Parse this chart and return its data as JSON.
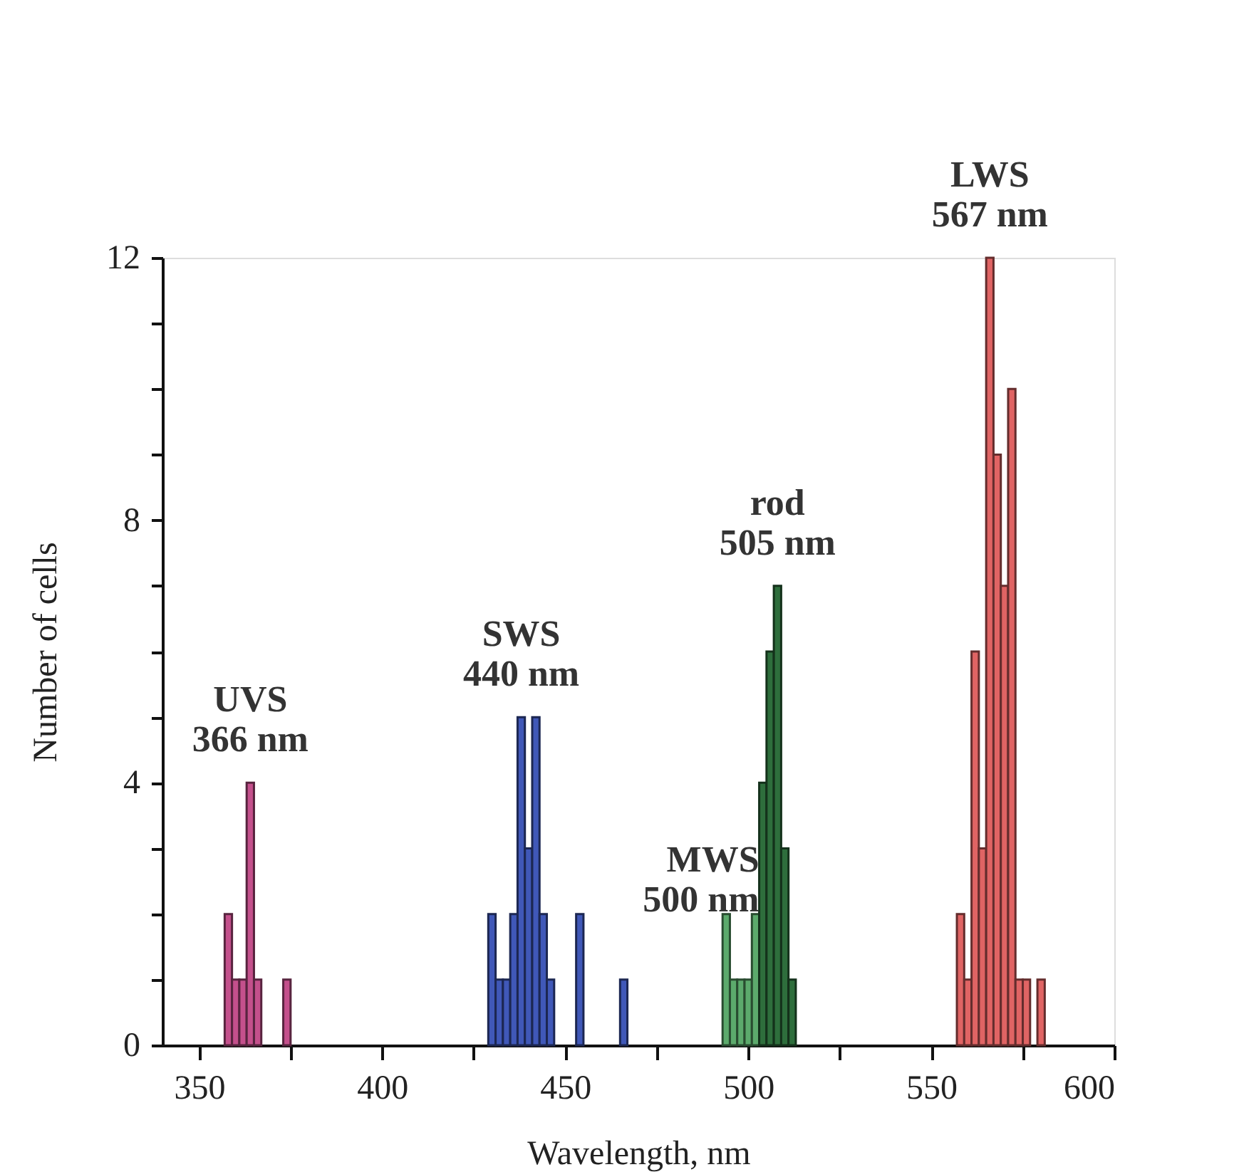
{
  "chart_data": {
    "type": "histogram",
    "xlabel": "Wavelength,  nm",
    "ylabel": "Number of cells",
    "xlim": [
      340,
      600
    ],
    "ylim": [
      0,
      12
    ],
    "xticks": [
      350,
      {
        "value": 375,
        "label": null
      },
      400,
      {
        "value": 425,
        "label": null
      },
      450,
      {
        "value": 475,
        "label": null
      },
      500,
      {
        "value": 525,
        "label": null
      },
      550,
      {
        "value": 575,
        "label": null
      },
      600
    ],
    "yticks": [
      0,
      {
        "value": 1,
        "label": null
      },
      {
        "value": 2,
        "label": null
      },
      {
        "value": 3,
        "label": null
      },
      4,
      {
        "value": 5,
        "label": null
      },
      {
        "value": 6,
        "label": null
      },
      {
        "value": 7,
        "label": null
      },
      8,
      {
        "value": 9,
        "label": null
      },
      {
        "value": 10,
        "label": null
      },
      {
        "value": 11,
        "label": null
      },
      12
    ],
    "bins": [
      357,
      359,
      361,
      363,
      365,
      367,
      369,
      371,
      373,
      375,
      377,
      379,
      381,
      383,
      385,
      387,
      389,
      391,
      393,
      395,
      397,
      399,
      401,
      403,
      405,
      407,
      409,
      411,
      413,
      415,
      417,
      419,
      421,
      423,
      425,
      427,
      429,
      431,
      433,
      435,
      437,
      439,
      441,
      443,
      445,
      447,
      449,
      451,
      453,
      455,
      457,
      459,
      461,
      463,
      465,
      467,
      469,
      471,
      473,
      475,
      477,
      479,
      481,
      483,
      485,
      487,
      489,
      491,
      493,
      495,
      497,
      499,
      501,
      503,
      505,
      507,
      509,
      511,
      513,
      515,
      517,
      519,
      521,
      523,
      525,
      527,
      529,
      531,
      533,
      535,
      537,
      539,
      541,
      543,
      545,
      547,
      549,
      551,
      553,
      555,
      557,
      559,
      561,
      563,
      565,
      567,
      569,
      571,
      573,
      575,
      577,
      579,
      581
    ],
    "series": [
      {
        "color": "#c4508c",
        "values": [
          2,
          1,
          1,
          4,
          1,
          0,
          0,
          0,
          1,
          null,
          null,
          null,
          null,
          null,
          null,
          null,
          null,
          null,
          null,
          null,
          null,
          null,
          null,
          null,
          null,
          null,
          null,
          null,
          null,
          null,
          null,
          null,
          null,
          null,
          null,
          null,
          null,
          null,
          null,
          null,
          null,
          null,
          null,
          null,
          null,
          null,
          null,
          null,
          null,
          null,
          null,
          null,
          null,
          null,
          null,
          null,
          null,
          null,
          null,
          null,
          null,
          null,
          null,
          null,
          null,
          null,
          null,
          null,
          null,
          null,
          null,
          null,
          null,
          null,
          null,
          null,
          null,
          null,
          null,
          null,
          null,
          null,
          null,
          null,
          null,
          null,
          null,
          null,
          null,
          null,
          null,
          null,
          null,
          null,
          null,
          null,
          null,
          null,
          null,
          null,
          null,
          null,
          null,
          null,
          null,
          null,
          null,
          null,
          null,
          null,
          null,
          null
        ]
      },
      {
        "color": "#4058b8",
        "values": [
          null,
          null,
          null,
          null,
          null,
          null,
          null,
          null,
          null,
          null,
          null,
          null,
          null,
          null,
          null,
          null,
          null,
          null,
          null,
          null,
          null,
          null,
          null,
          null,
          null,
          null,
          null,
          null,
          null,
          null,
          null,
          null,
          null,
          null,
          null,
          null,
          2,
          1,
          1,
          2,
          5,
          3,
          5,
          2,
          1,
          0,
          0,
          0,
          2,
          0,
          0,
          0,
          0,
          0,
          1,
          null,
          null,
          null,
          null,
          null,
          null,
          null,
          null,
          null,
          null,
          null,
          null,
          null,
          null,
          null,
          null,
          null,
          null,
          null,
          null,
          null,
          null,
          null,
          null,
          null,
          null,
          null,
          null,
          null,
          null,
          null,
          null,
          null,
          null,
          null,
          null,
          null,
          null,
          null,
          null,
          null,
          null,
          null,
          null,
          null,
          null,
          null,
          null,
          null,
          null,
          null,
          null,
          null,
          null,
          null,
          null,
          null
        ]
      },
      {
        "color": "#5caa6c",
        "values": [
          null,
          null,
          null,
          null,
          null,
          null,
          null,
          null,
          null,
          null,
          null,
          null,
          null,
          null,
          null,
          null,
          null,
          null,
          null,
          null,
          null,
          null,
          null,
          null,
          null,
          null,
          null,
          null,
          null,
          null,
          null,
          null,
          null,
          null,
          null,
          null,
          null,
          null,
          null,
          null,
          null,
          null,
          null,
          null,
          null,
          null,
          null,
          null,
          null,
          null,
          null,
          null,
          null,
          null,
          null,
          null,
          null,
          null,
          null,
          null,
          null,
          null,
          null,
          null,
          null,
          null,
          null,
          null,
          2,
          1,
          1,
          1,
          2,
          null,
          null,
          null,
          null,
          null,
          null,
          null,
          null,
          null,
          null,
          null,
          null,
          null,
          null,
          null,
          null,
          null,
          null,
          null,
          null,
          null,
          null,
          null,
          null,
          null,
          null,
          null,
          null,
          null,
          null,
          null,
          null,
          null,
          null,
          null,
          null,
          null,
          null,
          null
        ]
      },
      {
        "color": "#2e6e3c",
        "values": [
          null,
          null,
          null,
          null,
          null,
          null,
          null,
          null,
          null,
          null,
          null,
          null,
          null,
          null,
          null,
          null,
          null,
          null,
          null,
          null,
          null,
          null,
          null,
          null,
          null,
          null,
          null,
          null,
          null,
          null,
          null,
          null,
          null,
          null,
          null,
          null,
          null,
          null,
          null,
          null,
          null,
          null,
          null,
          null,
          null,
          null,
          null,
          null,
          null,
          null,
          null,
          null,
          null,
          null,
          null,
          null,
          null,
          null,
          null,
          null,
          null,
          null,
          null,
          null,
          null,
          null,
          null,
          null,
          null,
          null,
          null,
          null,
          null,
          4,
          6,
          7,
          3,
          1,
          null,
          null,
          null,
          null,
          null,
          null,
          null,
          null,
          null,
          null,
          null,
          null,
          null,
          null,
          null,
          null,
          null,
          null,
          null,
          null,
          null,
          null,
          null,
          null,
          null,
          null,
          null,
          null,
          null,
          null,
          null,
          null,
          null,
          null
        ]
      },
      {
        "color": "#e06464",
        "values": [
          null,
          null,
          null,
          null,
          null,
          null,
          null,
          null,
          null,
          null,
          null,
          null,
          null,
          null,
          null,
          null,
          null,
          null,
          null,
          null,
          null,
          null,
          null,
          null,
          null,
          null,
          null,
          null,
          null,
          null,
          null,
          null,
          null,
          null,
          null,
          null,
          null,
          null,
          null,
          null,
          null,
          null,
          null,
          null,
          null,
          null,
          null,
          null,
          null,
          null,
          null,
          null,
          null,
          null,
          null,
          null,
          null,
          null,
          null,
          null,
          null,
          null,
          null,
          null,
          null,
          null,
          null,
          null,
          null,
          null,
          null,
          null,
          null,
          null,
          null,
          null,
          null,
          null,
          null,
          null,
          null,
          null,
          null,
          null,
          null,
          null,
          null,
          null,
          null,
          null,
          null,
          null,
          null,
          null,
          null,
          null,
          null,
          null,
          null,
          null,
          2,
          1,
          6,
          3,
          12,
          9,
          7,
          10,
          1,
          1,
          0,
          1
        ]
      }
    ],
    "annotations": [
      "UVS\n366 nm",
      "SWS\n440 nm",
      "MWS\n500 nm",
      "rod\n505 nm",
      "LWS\n567 nm"
    ]
  }
}
